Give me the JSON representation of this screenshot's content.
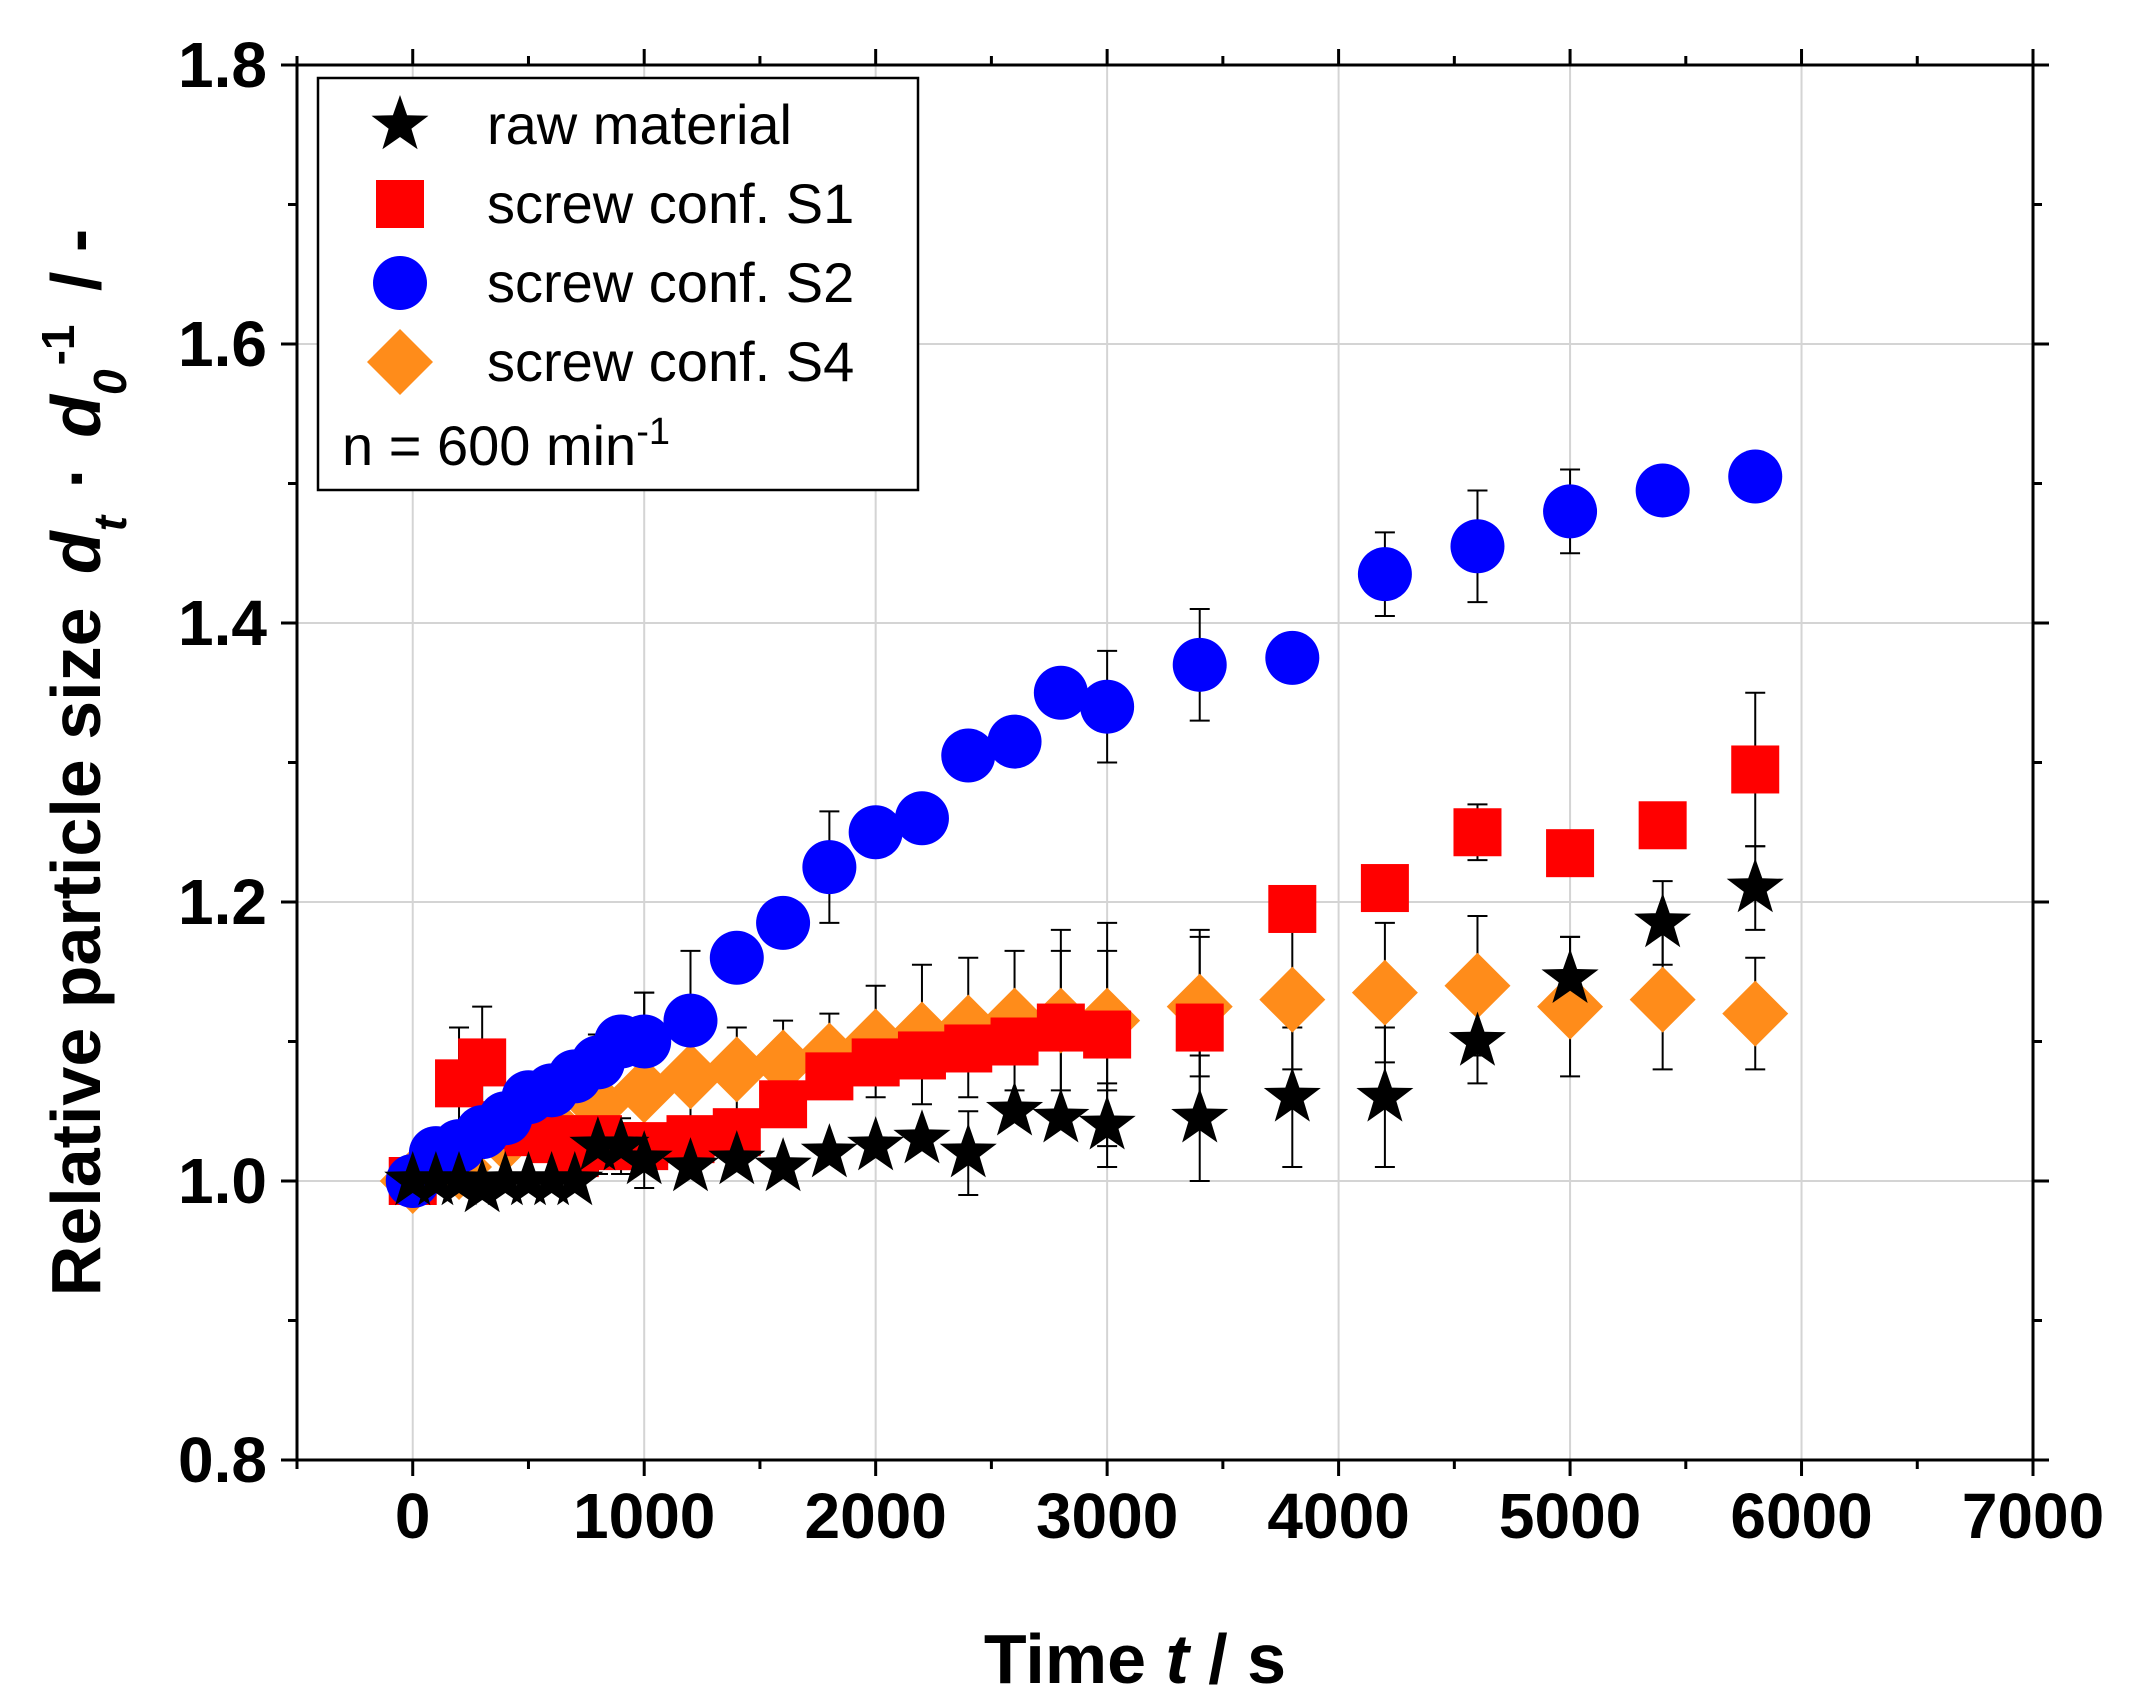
{
  "chart_data": {
    "type": "scatter",
    "xlabel": {
      "main": "Time",
      "var": "t",
      "unit": "/ s"
    },
    "ylabel": {
      "main": "Relative particle size",
      "var1": "d",
      "sub1": "t",
      "dot": "·",
      "var2": "d",
      "sub2": "0",
      "sup2": "-1",
      "unit": "/ -"
    },
    "xlim": [
      -500,
      7000
    ],
    "ylim": [
      0.8,
      1.8
    ],
    "xticks": [
      0,
      1000,
      2000,
      3000,
      4000,
      5000,
      6000,
      7000
    ],
    "yticks": [
      0.8,
      1.0,
      1.2,
      1.4,
      1.6,
      1.8
    ],
    "xtick_labels": [
      "0",
      "1000",
      "2000",
      "3000",
      "4000",
      "5000",
      "6000",
      "7000"
    ],
    "ytick_labels": [
      "0.8",
      "1.0",
      "1.2",
      "1.4",
      "1.6",
      "1.8"
    ],
    "grid": true,
    "legend_position": "top-left",
    "annotation": {
      "text": "n = 600 min",
      "sup": "-1"
    },
    "series": [
      {
        "name": "raw material",
        "marker": "star",
        "color": "#000000",
        "x": [
          0,
          100,
          200,
          300,
          400,
          500,
          600,
          700,
          800,
          900,
          1000,
          1200,
          1400,
          1600,
          1800,
          2000,
          2200,
          2400,
          2600,
          2800,
          3000,
          3400,
          3800,
          4200,
          4600,
          5000,
          5400,
          5800
        ],
        "y": [
          1.0,
          1.0,
          1.0,
          0.995,
          1.0,
          1.0,
          1.0,
          1.0,
          1.025,
          1.025,
          1.015,
          1.01,
          1.015,
          1.01,
          1.02,
          1.025,
          1.03,
          1.02,
          1.05,
          1.045,
          1.04,
          1.045,
          1.06,
          1.06,
          1.1,
          1.145,
          1.185,
          1.21
        ],
        "err": [
          0.0,
          0.0,
          0.0,
          0.0,
          0.0,
          0.0,
          0.0,
          0.0,
          0.02,
          0.02,
          0.0,
          0.0,
          0.0,
          0.0,
          0.0,
          0.0,
          0.0,
          0.03,
          0.0,
          0.0,
          0.03,
          0.045,
          0.05,
          0.05,
          0.03,
          0.03,
          0.03,
          0.03
        ]
      },
      {
        "name": "screw conf. S1",
        "marker": "square",
        "color": "#ff0000",
        "x": [
          0,
          200,
          300,
          400,
          500,
          600,
          700,
          800,
          900,
          1000,
          1200,
          1400,
          1600,
          1800,
          2000,
          2200,
          2400,
          2600,
          2800,
          3000,
          3400,
          3800,
          4200,
          4600,
          5000,
          5400,
          5800
        ],
        "y": [
          1.0,
          1.07,
          1.085,
          1.04,
          1.035,
          1.03,
          1.02,
          1.03,
          1.025,
          1.025,
          1.03,
          1.035,
          1.055,
          1.075,
          1.085,
          1.09,
          1.095,
          1.1,
          1.11,
          1.105,
          1.11,
          1.195,
          1.21,
          1.25,
          1.235,
          1.255,
          1.295
        ],
        "err": [
          0.0,
          0.04,
          0.04,
          0.0,
          0.0,
          0.0,
          0.0,
          0.0,
          0.0,
          0.0,
          0.0,
          0.0,
          0.0,
          0.0,
          0.0,
          0.0,
          0.0,
          0.0,
          0.07,
          0.08,
          0.07,
          0.0,
          0.0,
          0.02,
          0.0,
          0.0,
          0.055
        ]
      },
      {
        "name": "screw conf. S2",
        "marker": "circle",
        "color": "#0000ff",
        "x": [
          0,
          100,
          200,
          300,
          400,
          500,
          600,
          700,
          800,
          900,
          1000,
          1200,
          1400,
          1600,
          1800,
          2000,
          2200,
          2400,
          2600,
          2800,
          3000,
          3400,
          3800,
          4200,
          4600,
          5000,
          5400,
          5800
        ],
        "y": [
          1.0,
          1.02,
          1.025,
          1.035,
          1.045,
          1.06,
          1.065,
          1.075,
          1.085,
          1.1,
          1.1,
          1.115,
          1.16,
          1.185,
          1.225,
          1.25,
          1.26,
          1.305,
          1.315,
          1.35,
          1.34,
          1.37,
          1.375,
          1.435,
          1.455,
          1.48,
          1.495,
          1.505
        ],
        "err": [
          0.0,
          0.0,
          0.0,
          0.0,
          0.0,
          0.0,
          0.0,
          0.0,
          0.0,
          0.0,
          0.035,
          0.05,
          0.0,
          0.0,
          0.04,
          0.0,
          0.0,
          0.0,
          0.015,
          0.0,
          0.04,
          0.04,
          0.0,
          0.03,
          0.04,
          0.03,
          0.0,
          0.0
        ]
      },
      {
        "name": "screw conf. S4",
        "marker": "diamond",
        "color": "#ff8c1a",
        "x": [
          0,
          200,
          400,
          600,
          800,
          1000,
          1200,
          1400,
          1600,
          1800,
          2000,
          2200,
          2400,
          2600,
          2800,
          3000,
          3400,
          3800,
          4200,
          4600,
          5000,
          5400,
          5800
        ],
        "y": [
          1.0,
          1.01,
          1.03,
          1.04,
          1.055,
          1.065,
          1.075,
          1.08,
          1.085,
          1.09,
          1.1,
          1.105,
          1.11,
          1.115,
          1.115,
          1.115,
          1.125,
          1.13,
          1.135,
          1.14,
          1.125,
          1.13,
          1.12
        ],
        "err": [
          0.0,
          0.0,
          0.0,
          0.0,
          0.05,
          0.07,
          0.045,
          0.03,
          0.03,
          0.03,
          0.04,
          0.05,
          0.05,
          0.05,
          0.05,
          0.05,
          0.05,
          0.05,
          0.05,
          0.05,
          0.05,
          0.05,
          0.04
        ]
      }
    ]
  }
}
